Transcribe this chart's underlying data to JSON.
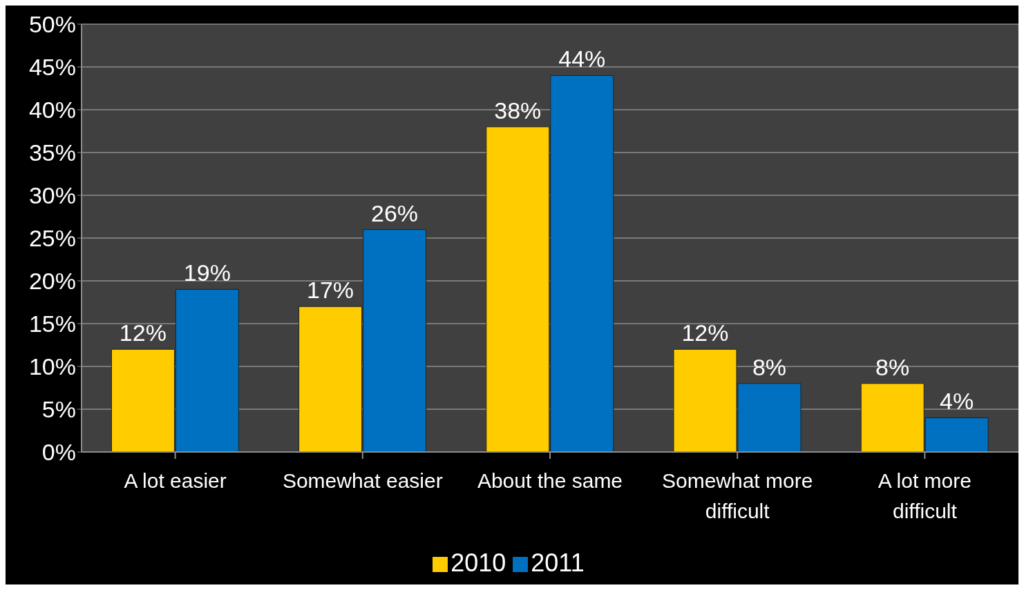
{
  "chart_data": {
    "type": "bar",
    "categories": [
      "A lot easier",
      "Somewhat easier",
      "About the same",
      "Somewhat more difficult",
      "A lot more difficult"
    ],
    "series": [
      {
        "name": "2010",
        "color": "#ffcc00",
        "values": [
          12,
          17,
          38,
          12,
          8
        ],
        "value_labels": [
          "12%",
          "17%",
          "38%",
          "12%",
          "8%"
        ]
      },
      {
        "name": "2011",
        "color": "#0070c0",
        "values": [
          19,
          26,
          44,
          8,
          4
        ],
        "value_labels": [
          "19%",
          "26%",
          "44%",
          "8%",
          "4%"
        ]
      }
    ],
    "ylim": [
      0,
      50
    ],
    "yticks": [
      {
        "value": 0,
        "label": "0%"
      },
      {
        "value": 5,
        "label": "5%"
      },
      {
        "value": 10,
        "label": "10%"
      },
      {
        "value": 15,
        "label": "15%"
      },
      {
        "value": 20,
        "label": "20%"
      },
      {
        "value": 25,
        "label": "25%"
      },
      {
        "value": 30,
        "label": "30%"
      },
      {
        "value": 35,
        "label": "35%"
      },
      {
        "value": 40,
        "label": "40%"
      },
      {
        "value": 45,
        "label": "45%"
      },
      {
        "value": 50,
        "label": "50%"
      }
    ],
    "grid": "y",
    "legend": "bottom"
  }
}
